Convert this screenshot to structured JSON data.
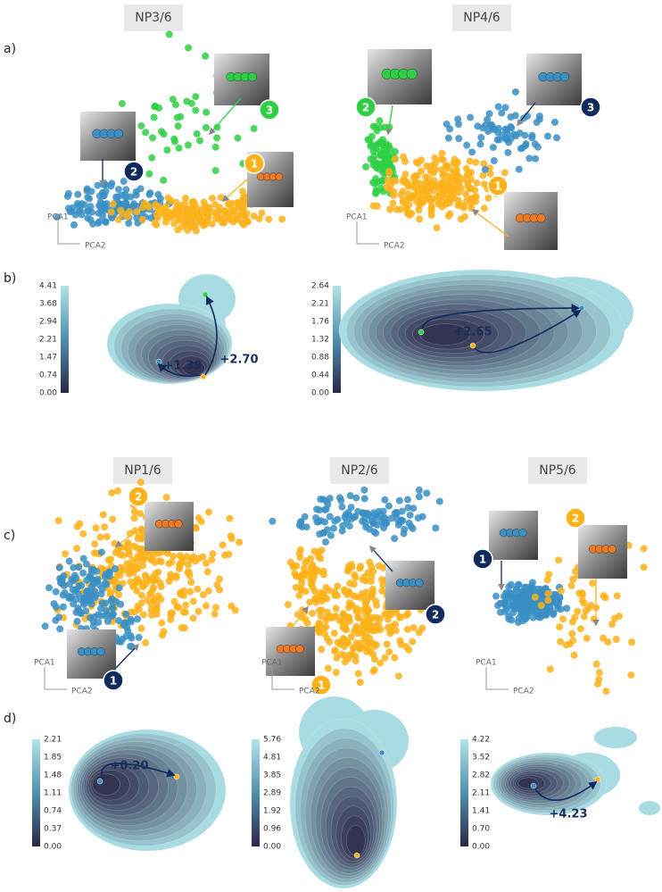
{
  "figure": {
    "rows": [
      {
        "label": "a)",
        "plots": [
          {
            "title": "NP3/6",
            "axis_y": "PCA1",
            "axis_x": "PCA2",
            "badges": [
              "1",
              "2",
              "3"
            ]
          },
          {
            "title": "NP4/6",
            "axis_y": "PCA1",
            "axis_x": "PCA2",
            "badges": [
              "2",
              "3",
              "1"
            ]
          }
        ]
      },
      {
        "label": "b)",
        "plots": [
          {
            "colorbar": [
              "4.41",
              "3.68",
              "2.94",
              "2.21",
              "1.47",
              "0.74",
              "0.00"
            ],
            "annotations": [
              "+1.39",
              "+2.70"
            ]
          },
          {
            "colorbar": [
              "2.64",
              "2.21",
              "1.76",
              "1.32",
              "0.88",
              "0.44",
              "0.00"
            ],
            "annotations": [
              "+2.65"
            ]
          }
        ]
      },
      {
        "label": "c)",
        "plots": [
          {
            "title": "NP1/6",
            "axis_y": "PCA1",
            "axis_x": "PCA2",
            "badges": [
              "2",
              "1"
            ]
          },
          {
            "title": "NP2/6",
            "axis_y": "PCA1",
            "axis_x": "PCA2",
            "badges": [
              "2",
              "1"
            ]
          },
          {
            "title": "NP5/6",
            "axis_y": "PCA1",
            "axis_x": "PCA2",
            "badges": [
              "1",
              "2"
            ]
          }
        ]
      },
      {
        "label": "d)",
        "plots": [
          {
            "colorbar": [
              "2.21",
              "1.85",
              "1.48",
              "1.11",
              "0.74",
              "0.37",
              "0.00"
            ],
            "annotations": [
              "+0.20"
            ]
          },
          {
            "colorbar": [
              "5.76",
              "4.81",
              "3.85",
              "2.89",
              "1.92",
              "0.96",
              "0.00"
            ]
          },
          {
            "colorbar": [
              "4.22",
              "3.52",
              "2.82",
              "2.11",
              "1.41",
              "0.70",
              "0.00"
            ],
            "annotations": [
              "+4.23"
            ]
          }
        ]
      }
    ]
  }
}
